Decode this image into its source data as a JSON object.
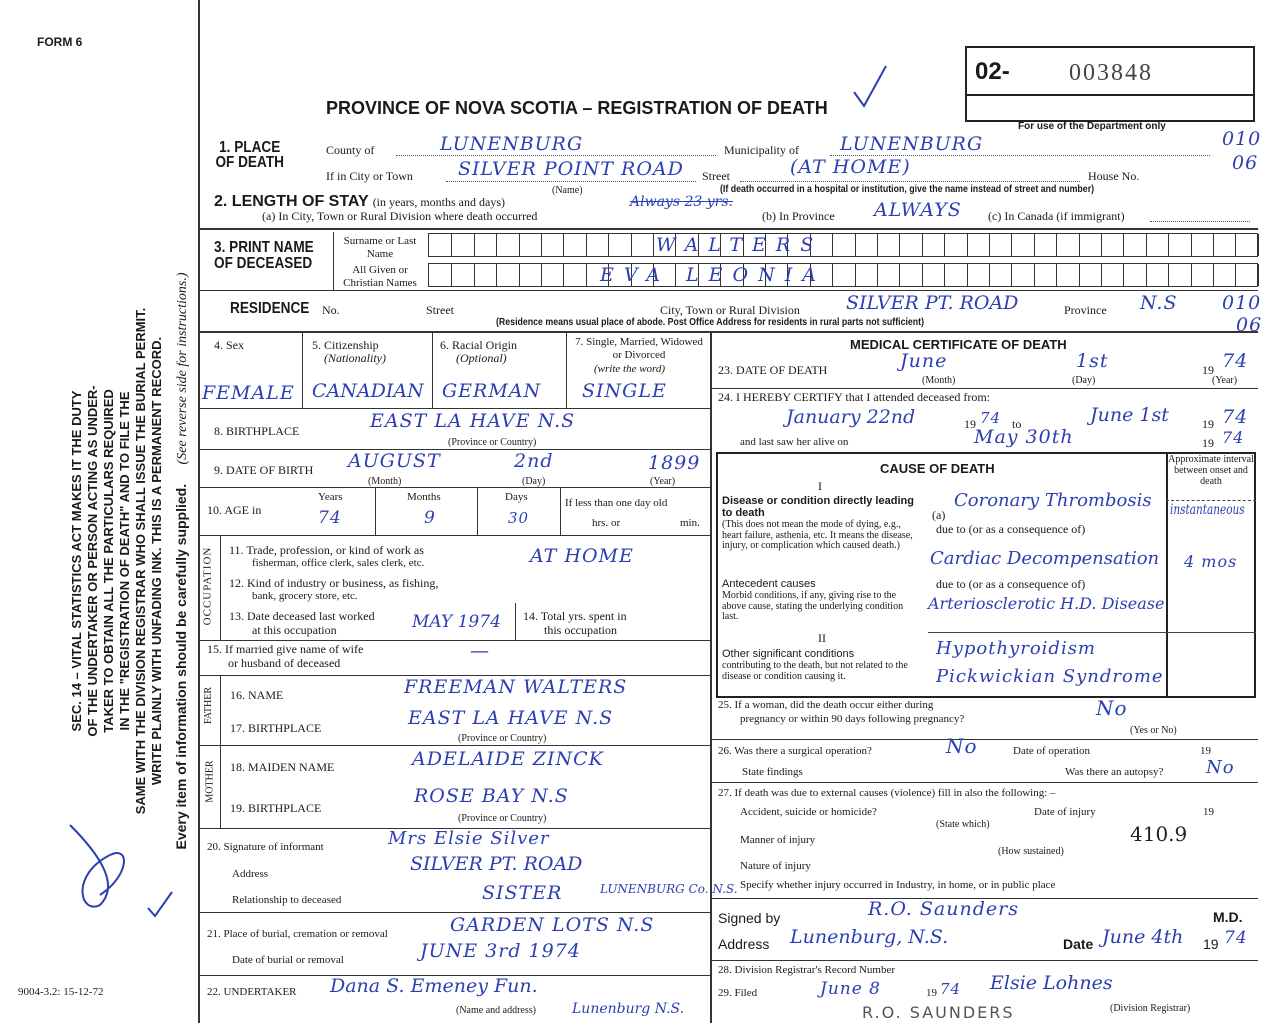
{
  "form_id": "FORM 6",
  "form_code": "9004-3.2: 15-12-72",
  "title": "PROVINCE OF NOVA SCOTIA – REGISTRATION OF DEATH",
  "reg_prefix": "02-",
  "reg_number": "003848",
  "dept_only": "For use of the Department only",
  "dept_codes": [
    "010",
    "06",
    "010",
    "06"
  ],
  "side_text": [
    "SEC. 14 – VITAL STATISTICS ACT MAKES IT THE DUTY",
    "OF THE UNDERTAKER OR PERSON ACTING AS UNDER-",
    "TAKER TO OBTAIN ALL THE PARTICULARS REQUIRED",
    "IN THE \"REGISTRATION OF DEATH\" AND TO FILE THE",
    "SAME WITH THE DIVISION REGISTRAR WHO SHALL ISSUE THE BURIAL PERMIT.",
    "WRITE PLAINLY WITH UNFADING INK. THIS IS A PERMANENT RECORD."
  ],
  "side_note": "Every item of information should be carefully supplied.",
  "side_note2": "(See reverse side for instructions.)",
  "place": {
    "label": "1. PLACE OF DEATH",
    "county_label": "County of",
    "county": "LUNENBURG",
    "municipality_label": "Municipality of",
    "municipality": "LUNENBURG",
    "city_label": "If in City or Town",
    "city": "SILVER POINT ROAD",
    "name_hint": "(Name)",
    "street_label": "Street",
    "street": "(AT HOME)",
    "house_label": "House No.",
    "hospital_note": "(If death occurred in a hospital or institution, give the name instead of street and number)"
  },
  "stay": {
    "label": "2. LENGTH OF STAY",
    "label_hint": "(in years, months and days)",
    "a_label": "(a) In City, Town or Rural Division where death occurred",
    "a_value": "Always 23 yrs.",
    "b_label": "(b) In Province",
    "b_value": "ALWAYS",
    "c_label": "(c) In Canada (if immigrant)"
  },
  "name": {
    "label": "3. PRINT NAME OF DECEASED",
    "surname_label": "Surname or Last Name",
    "surname": "WALTERS",
    "given_label": "All Given or Christian Names",
    "given": "EVA LEONIA"
  },
  "residence": {
    "label": "RESIDENCE",
    "no_label": "No.",
    "street_label": "Street",
    "city_label": "City, Town or Rural Division",
    "city": "SILVER PT. ROAD",
    "province_label": "Province",
    "province": "N.S",
    "note": "(Residence means usual place of abode. Post Office Address for residents in rural parts not sufficient)"
  },
  "personal": {
    "sex_label": "4. Sex",
    "sex": "FEMALE",
    "cit_label": "5. Citizenship",
    "cit_hint": "(Nationality)",
    "cit": "CANADIAN",
    "race_label": "6. Racial Origin",
    "race_hint": "(Optional)",
    "race": "GERMAN",
    "marital_label": "7. Single, Married, Widowed or Divorced",
    "marital_hint": "(write the word)",
    "marital": "SINGLE",
    "birthplace_label": "8. BIRTHPLACE",
    "birthplace": "EAST LA HAVE    N.S",
    "prov_hint": "(Province or Country)",
    "dob_label": "9. DATE OF BIRTH",
    "dob_month": "AUGUST",
    "dob_day": "2nd",
    "dob_year": "1899",
    "month_hint": "(Month)",
    "day_hint": "(Day)",
    "year_hint": "(Year)",
    "age_label": "10. AGE in",
    "years_label": "Years",
    "years": "74",
    "months_label": "Months",
    "months": "9",
    "days_label": "Days",
    "days": "30",
    "less_label": "If less than one day old",
    "hrs_label": "hrs. or",
    "min_label": "min."
  },
  "occupation": {
    "side": "OCCUPATION",
    "q11": "11. Trade, profession, or kind of work as",
    "q11b": "fisherman, office clerk, sales clerk, etc.",
    "a11": "AT HOME",
    "q12": "12. Kind of industry or business, as fishing,",
    "q12b": "bank, grocery store, etc.",
    "q13": "13. Date deceased last worked",
    "q13b": "at this occupation",
    "a13": "MAY 1974",
    "q14": "14. Total yrs. spent in",
    "q14b": "this occupation"
  },
  "spouse": {
    "q15": "15. If married give name of wife",
    "q15b": "or husband of deceased",
    "a15": "—"
  },
  "father": {
    "side": "FATHER",
    "name_label": "16. NAME",
    "name": "FREEMAN WALTERS",
    "bp_label": "17. BIRTHPLACE",
    "bp": "EAST LA HAVE N.S"
  },
  "mother": {
    "side": "MOTHER",
    "name_label": "18. MAIDEN NAME",
    "name": "ADELAIDE ZINCK",
    "bp_label": "19. BIRTHPLACE",
    "bp": "ROSE BAY  N.S"
  },
  "informant": {
    "sig_label": "20. Signature of informant",
    "sig": "Mrs Elsie Silver",
    "addr_label": "Address",
    "addr": "SILVER PT. ROAD",
    "addr2": "LUNENBURG Co. N.S.",
    "rel_label": "Relationship to deceased",
    "rel": "SISTER"
  },
  "burial": {
    "place_label": "21. Place of burial, cremation or removal",
    "place": "GARDEN LOTS N.S",
    "date_label": "Date of burial or removal",
    "date": "JUNE 3rd 1974"
  },
  "undertaker": {
    "label": "22. UNDERTAKER",
    "value": "Dana S. Emeney Fun.",
    "value2": "Lunenburg N.S.",
    "hint": "(Name and address)"
  },
  "medical": {
    "title": "MEDICAL CERTIFICATE OF DEATH",
    "q23": "23. DATE OF DEATH",
    "d_month": "June",
    "d_day": "1st",
    "d_year": "74",
    "yr_prefix": "19",
    "q24": "24. I HEREBY CERTIFY that I attended deceased from:",
    "from": "January 22nd",
    "from_year": "74",
    "to_label": "to",
    "to": "June 1st",
    "to_year": "74",
    "last_seen": "and last saw her alive on",
    "last": "May 30th",
    "last_year": "74"
  },
  "cause": {
    "title": "CAUSE OF DEATH",
    "part1": "I",
    "part2": "II",
    "interval_header": "Approximate interval between onset and death",
    "direct_title": "Disease or condition directly leading to death",
    "direct_text": "(This does not mean the mode of dying, e.g., heart failure, asthenia, etc. It means the disease, injury, or complication which caused death.)",
    "ante_title": "Antecedent causes",
    "ante_text": "Morbid conditions, if any, giving rise to the above cause, stating the underlying condition last.",
    "other_title": "Other significant conditions",
    "other_text": "contributing to the death, but not related to the disease or condition causing it.",
    "due_to": "due to (or as a consequence of)",
    "a": "Coronary Thrombosis",
    "a_interval": "instantaneous",
    "b": "Cardiac Decompensation",
    "b_interval": "4 mos",
    "c": "Arteriosclerotic H.D. Disease",
    "other1": "Hypothyroidism",
    "other2": "Pickwickian Syndrome"
  },
  "q25": {
    "text": "25. If a woman, did the death occur either during",
    "text2": "pregnancy or within 90 days following pregnancy?",
    "value": "No",
    "hint": "(Yes or No)"
  },
  "q26": {
    "text": "26. Was there a surgical operation?",
    "value": "No",
    "date_label": "Date of operation",
    "yr": "19",
    "findings": "State findings",
    "autopsy_label": "Was there an autopsy?",
    "autopsy": "No"
  },
  "q27": {
    "text": "27. If death was due to external causes (violence) fill in also the following: –",
    "accident": "Accident, suicide or homicide?",
    "state_which": "(State which)",
    "date_inj": "Date of injury",
    "yr": "19",
    "manner": "Manner of injury",
    "how": "(How sustained)",
    "code": "410.9",
    "nature": "Nature of injury",
    "specify": "Specify whether injury occurred in Industry, in home, or in public place"
  },
  "signed": {
    "label": "Signed by",
    "value": "R.O. Saunders",
    "md": "M.D.",
    "addr_label": "Address",
    "addr": "Lunenburg, N.S.",
    "date_label": "Date",
    "date": "June 4th",
    "yr": "19",
    "year": "74"
  },
  "registrar": {
    "q28": "28. Division Registrar's Record Number",
    "q29": "29. Filed",
    "filed": "June 8",
    "yr": "19",
    "year": "74",
    "signature": "Elsie Lohnes",
    "hint": "(Division Registrar)",
    "stamp": "R.O. SAUNDERS"
  }
}
